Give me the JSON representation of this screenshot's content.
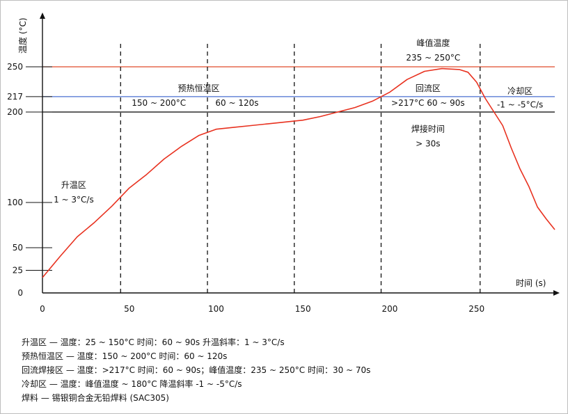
{
  "chart_data": {
    "type": "line",
    "ylabel": "温度 (°C)",
    "xlabel": "时间 (s)",
    "xlim": [
      0,
      295
    ],
    "ylim": [
      0,
      300
    ],
    "x_ticks": [
      0,
      50,
      100,
      150,
      200,
      250
    ],
    "y_ticks": [
      0,
      25,
      50,
      100,
      200,
      217,
      250
    ],
    "reference_lines": [
      {
        "y": 250,
        "color": "#e04a2a"
      },
      {
        "y": 217,
        "color": "#4a6fd0"
      },
      {
        "y": 200,
        "color": "#000000"
      }
    ],
    "zone_dividers_x": [
      45,
      95,
      145,
      195,
      252
    ],
    "series": [
      {
        "color": "#e8311f",
        "points": [
          [
            0,
            17
          ],
          [
            10,
            40
          ],
          [
            20,
            62
          ],
          [
            30,
            78
          ],
          [
            40,
            96
          ],
          [
            50,
            116
          ],
          [
            60,
            131
          ],
          [
            70,
            148
          ],
          [
            80,
            162
          ],
          [
            90,
            174
          ],
          [
            100,
            181
          ],
          [
            110,
            183
          ],
          [
            120,
            185
          ],
          [
            130,
            187
          ],
          [
            140,
            189
          ],
          [
            150,
            191
          ],
          [
            160,
            195
          ],
          [
            170,
            200
          ],
          [
            180,
            205
          ],
          [
            190,
            212
          ],
          [
            200,
            222
          ],
          [
            210,
            236
          ],
          [
            220,
            245
          ],
          [
            230,
            248
          ],
          [
            240,
            247
          ],
          [
            245,
            244
          ],
          [
            250,
            233
          ],
          [
            255,
            215
          ],
          [
            260,
            200
          ],
          [
            265,
            185
          ],
          [
            270,
            160
          ],
          [
            275,
            137
          ],
          [
            280,
            118
          ],
          [
            285,
            95
          ],
          [
            290,
            82
          ],
          [
            295,
            70
          ]
        ]
      }
    ],
    "annotations": [
      {
        "text": "峰值温度",
        "x": 225,
        "y": 273
      },
      {
        "text": "235 ~ 250°C",
        "x": 225,
        "y": 257
      },
      {
        "text": "预热恒温区",
        "x": 90,
        "y": 223
      },
      {
        "text": "150 ~ 200°C",
        "x": 67,
        "y": 207
      },
      {
        "text": "60 ~ 120s",
        "x": 112,
        "y": 207
      },
      {
        "text": "回流区",
        "x": 222,
        "y": 223
      },
      {
        "text": ">217°C  60 ~ 90s",
        "x": 222,
        "y": 207
      },
      {
        "text": "冷却区",
        "x": 275,
        "y": 220
      },
      {
        "text": "-1 ~ -5°C/s",
        "x": 275,
        "y": 205
      },
      {
        "text": "焊接时间",
        "x": 222,
        "y": 178
      },
      {
        "text": "> 30s",
        "x": 222,
        "y": 162
      },
      {
        "text": "升温区",
        "x": 18,
        "y": 116
      },
      {
        "text": "1 ~ 3°C/s",
        "x": 18,
        "y": 100
      }
    ]
  },
  "notes": [
    "升温区 — 温度：25 ~ 150°C 时间：60 ~ 90s 升温斜率：1 ~ 3°C/s",
    "预热恒温区 — 温度：150 ~ 200°C 时间：60 ~ 120s",
    "回流焊接区 — 温度：>217°C 时间：60 ~ 90s；峰值温度：235 ~ 250°C 时间：30 ~ 70s",
    "冷却区 — 温度：峰值温度 ~ 180°C 降温斜率 -1 ~ -5°C/s",
    "焊料 — 锡银铜合金无铅焊料 (SAC305)"
  ]
}
